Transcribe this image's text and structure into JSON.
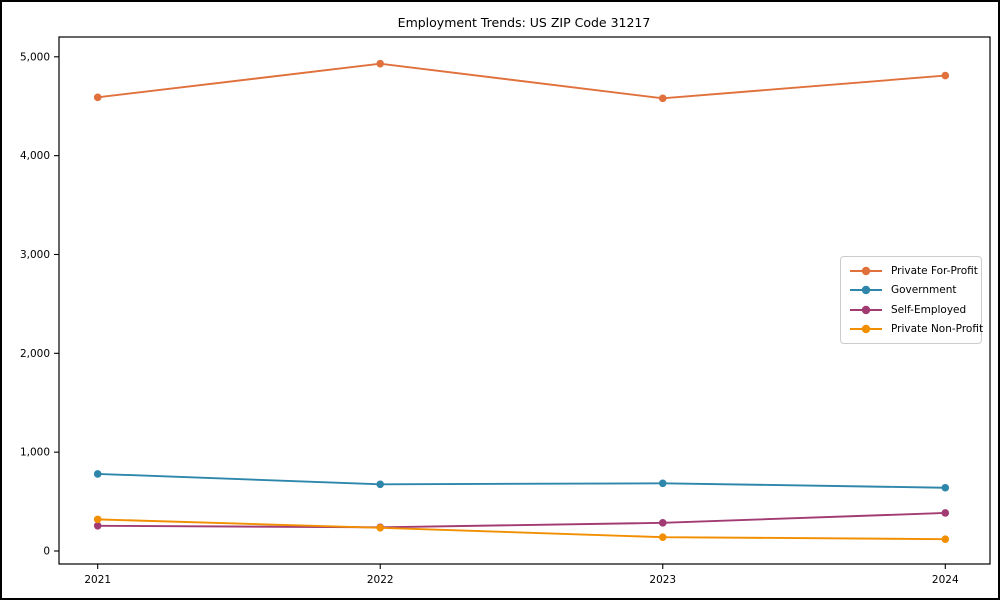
{
  "chart_data": {
    "type": "line",
    "title": "Employment Trends: US ZIP Code 31217",
    "x": [
      "2021",
      "2022",
      "2023",
      "2024"
    ],
    "xlabel": "",
    "ylabel": "",
    "ylim": [
      0,
      5000
    ],
    "yticks": [
      0,
      1000,
      2000,
      3000,
      4000,
      5000
    ],
    "ytick_labels": [
      "0",
      "1,000",
      "2,000",
      "3,000",
      "4,000",
      "5,000"
    ],
    "grid": false,
    "legend_position": "center-right",
    "series": [
      {
        "name": "Private For-Profit",
        "color": "#E0713C",
        "values": [
          4590,
          4930,
          4580,
          4810
        ]
      },
      {
        "name": "Government",
        "color": "#2E86AB",
        "values": [
          780,
          675,
          685,
          640
        ]
      },
      {
        "name": "Self-Employed",
        "color": "#A23B72",
        "values": [
          255,
          240,
          285,
          385
        ]
      },
      {
        "name": "Private Non-Profit",
        "color": "#F18F01",
        "values": [
          320,
          235,
          140,
          120
        ]
      }
    ]
  }
}
